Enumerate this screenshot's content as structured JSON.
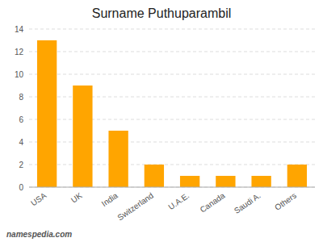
{
  "chart_data": {
    "type": "bar",
    "title": "Surname Puthuparambil",
    "categories": [
      "USA",
      "UK",
      "India",
      "Switzerland",
      "U.A.E.",
      "Canada",
      "Saudi A.",
      "Others"
    ],
    "values": [
      13,
      9,
      5,
      2,
      1,
      1,
      1,
      2
    ],
    "color": "#FFA500",
    "ylim": [
      0,
      14
    ],
    "yticks": [
      0,
      2,
      4,
      6,
      8,
      10,
      12,
      14
    ],
    "grid": true,
    "annotations": [
      "namespedia.com"
    ]
  }
}
